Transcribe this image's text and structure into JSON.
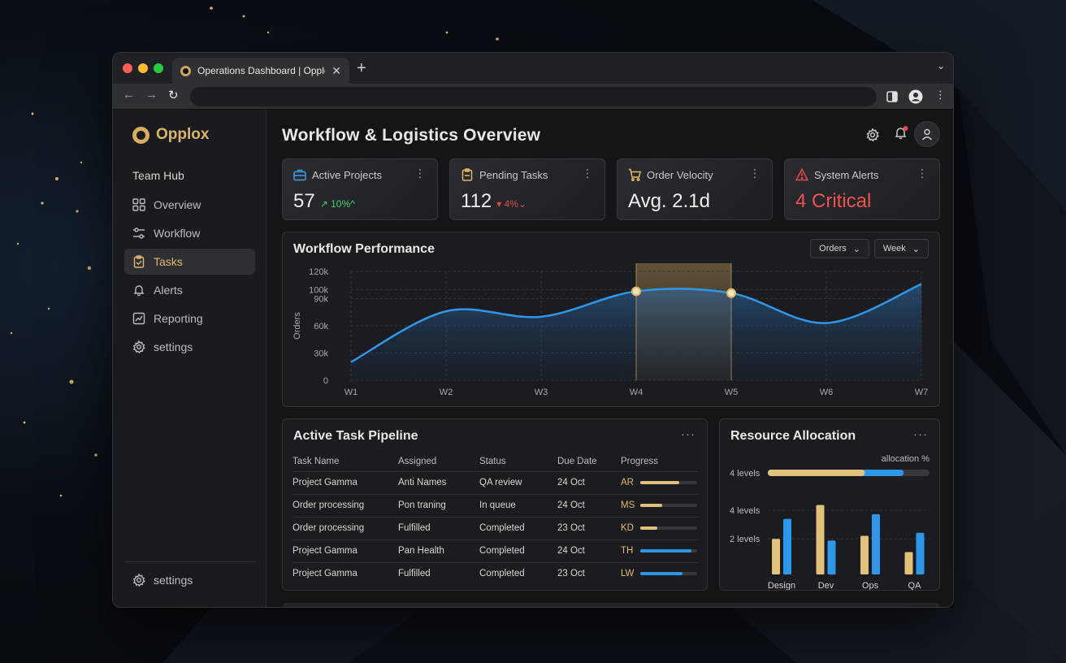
{
  "browser": {
    "tab_title": "Operations Dashboard | Opplox",
    "close_glyph": "✕",
    "newtab_glyph": "+",
    "chevron_glyph": "⌄",
    "back_glyph": "←",
    "forward_glyph": "→",
    "reload_glyph": "↻",
    "more_glyph": "⋮",
    "url": ""
  },
  "sidebar": {
    "brand": "Opplox",
    "section": "Team Hub",
    "items": [
      {
        "label": "Overview",
        "icon": "grid-icon",
        "active": false
      },
      {
        "label": "Workflow",
        "icon": "sliders-icon",
        "active": false
      },
      {
        "label": "Tasks",
        "icon": "clipboard-check-icon",
        "active": true
      },
      {
        "label": "Alerts",
        "icon": "bell-icon",
        "active": false
      },
      {
        "label": "Reporting",
        "icon": "chart-icon",
        "active": false
      },
      {
        "label": "settings",
        "icon": "gear-icon",
        "active": false
      }
    ],
    "footer_label": "settings"
  },
  "header": {
    "title": "Workflow & Logistics Overview"
  },
  "kpis": [
    {
      "label": "Active Projects",
      "value": "57",
      "delta": "↗ 10%^",
      "delta_color": "#3fcf6a",
      "icon": "briefcase-icon",
      "icon_color": "#3d9be0",
      "value_color": "#eeeeee"
    },
    {
      "label": "Pending Tasks",
      "value": "112",
      "delta": "▾ 4%⌄",
      "delta_color": "#e5484d",
      "icon": "clipboard-icon",
      "icon_color": "#e2b866",
      "value_color": "#eeeeee"
    },
    {
      "label": "Order Velocity",
      "value": "Avg. 2.1d",
      "delta": "",
      "delta_color": "#cccccc",
      "icon": "cart-icon",
      "icon_color": "#e2b866",
      "value_color": "#eeeeee"
    },
    {
      "label": "System Alerts",
      "value": "4 Critical",
      "delta": "",
      "delta_color": "#cccccc",
      "icon": "warning-icon",
      "icon_color": "#e5484d",
      "value_color": "#f0524d"
    }
  ],
  "kpi_menu_glyph": "⋮",
  "card_menu_glyph": "···",
  "workflow": {
    "title": "Workflow Performance",
    "filter_metric": "Orders",
    "filter_period": "Week",
    "dropdown_glyph": "⌄"
  },
  "chart_data": {
    "type": "line",
    "title": "Workflow Performance",
    "ylabel": "Orders",
    "xlabel": "",
    "x": [
      "W1",
      "W2",
      "W3",
      "W4",
      "W5",
      "W6",
      "W7"
    ],
    "series": [
      {
        "values": [
          20000,
          76000,
          70000,
          98000,
          96000,
          63000,
          106000
        ]
      }
    ],
    "ylim": [
      0,
      120000
    ],
    "yticks": [
      "0",
      "30k",
      "60k",
      "90k",
      "100k",
      "120k"
    ],
    "ytick_values": [
      0,
      30000,
      60000,
      90000,
      100000,
      120000
    ],
    "highlight_range": [
      "W4",
      "W5"
    ],
    "grid": true,
    "line_color": "#2e97ea",
    "highlight_color": "#e2b866"
  },
  "pipeline": {
    "title": "Active Task Pipeline",
    "columns": [
      "Task Name",
      "Assigned",
      "Status",
      "Due Date",
      "Progress"
    ],
    "rows": [
      {
        "task": "Project Gamma",
        "assigned": "Anti Names",
        "status": "QA review",
        "due": "24 Oct",
        "initials": "AR",
        "progress": 0.68,
        "color": "#e2c17c"
      },
      {
        "task": "Order processing",
        "assigned": "Pon traning",
        "status": "In queue",
        "due": "24 Oct",
        "initials": "MS",
        "progress": 0.38,
        "color": "#e2c17c"
      },
      {
        "task": "Order processing",
        "assigned": "Fulfilled",
        "status": "Completed",
        "due": "23 Oct",
        "initials": "KD",
        "progress": 0.3,
        "color": "#e2c17c"
      },
      {
        "task": "Project Gamma",
        "assigned": "Pan Health",
        "status": "Completed",
        "due": "24 Oct",
        "initials": "TH",
        "progress": 0.9,
        "color": "#2e97ea"
      },
      {
        "task": "Project Gamma",
        "assigned": "Fulfilled",
        "status": "Completed",
        "due": "23 Oct",
        "initials": "LW",
        "progress": 0.74,
        "color": "#2e97ea"
      }
    ]
  },
  "resources": {
    "title": "Resource Allocation",
    "caption": "allocation %",
    "bar_label": "4 levels",
    "bar_gold": 0.6,
    "bar_blue": 0.24,
    "levels": [
      "4 levels",
      "2 levels"
    ],
    "categories": [
      "Design",
      "Dev",
      "Ops",
      "QA"
    ],
    "gold": [
      0.46,
      0.9,
      0.5,
      0.29
    ],
    "blue": [
      0.72,
      0.44,
      0.78,
      0.54
    ],
    "gold_color": "#e2c17c",
    "blue_color": "#2e97ea"
  }
}
